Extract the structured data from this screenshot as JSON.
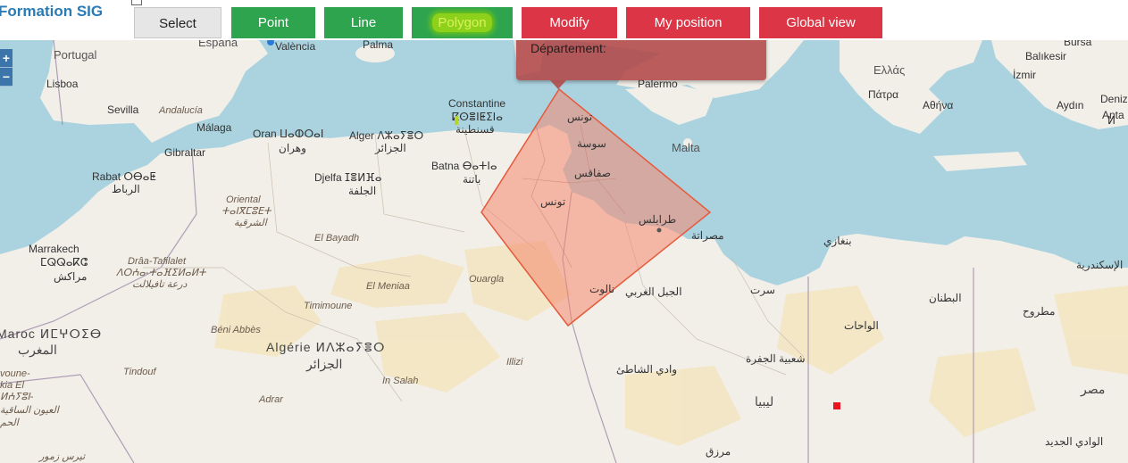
{
  "app": {
    "title": "Formation SIG"
  },
  "toolbar": {
    "buttons": [
      {
        "label": "Select"
      },
      {
        "label": "Point"
      },
      {
        "label": "Line"
      },
      {
        "label": "Polygon"
      },
      {
        "label": "Modify"
      },
      {
        "label": "My position"
      },
      {
        "label": "Global view"
      }
    ],
    "active": "Polygon"
  },
  "zoom": {
    "in": "+",
    "out": "−"
  },
  "popup": {
    "text": "Département:"
  },
  "colors": {
    "sea": "#aad3df",
    "land": "#f2efe9",
    "desert": "#f3e5c0",
    "polygon_fill": "#f5876e",
    "polygon_stroke": "#e55a3c",
    "green": "#2ea44f",
    "red": "#dc3545"
  },
  "map": {
    "labels": {
      "portugal": "Portugal",
      "espana": "España",
      "lisboa": "Lisboa",
      "sevilla": "Sevilla",
      "andalucia": "Andalucía",
      "malaga": "Málaga",
      "gibraltar": "Gibraltar",
      "rabat": "Rabat ⵔⴱⴰⵟ",
      "rabat_ar": "الرباط",
      "marrakech": "Marrakech",
      "marrakech_tf": "ⵎⵕⵕⴰⴽⵛ",
      "marrakech_ar": "مراكش",
      "valencia": "València",
      "palma": "Palma",
      "oran": "Oran ⵡⴰⵀⵔⴰⵏ",
      "oran_ar": "وهران",
      "alger": "Alger ⴷⵣⴰⵢⴻⵔ",
      "alger_ar": "الجزائر",
      "constantine": "Constantine",
      "constantine_tf": "ⵇⵙⴻⵏⵟⵉⵏⴰ",
      "constantine_ar": "قسنطينة",
      "batna": "Batna ⴱⴰⵜⵏⴰ",
      "batna_ar": "باتنة",
      "djelfa": "Djelfa ⵊⴻⵍⴼⴰ",
      "djelfa_ar": "الجلفة",
      "oriental": "Oriental",
      "oriental_tf": "ⵜⴰⵏⴳⵎⵓⴹⵜ",
      "oriental_ar": "الشرقية",
      "el_bayadh": "El Bayadh",
      "draa": "Drâa-Tafilalet",
      "draa_tf": "ⴷⵔⵄⴰ-ⵜⴰⴼⵉⵍⴰⵍⵜ",
      "draa_ar": "درعة تافيلالت",
      "el_meniaa": "El Meniaa",
      "ouargla": "Ouargla",
      "timimoune": "Timimoune",
      "beni_abbes": "Béni Abbès",
      "algerie": "Algérie ⵍⴷⵣⴰⵢⴻⵔ",
      "algerie_ar": "الجزائر",
      "maroc": "Maroc ⵍⵎⵖⵔⵉⴱ",
      "maroc_ar": "المغرب",
      "tindouf": "Tindouf",
      "adrar": "Adrar",
      "in_salah": "In Salah",
      "illizi": "Illizi",
      "tounes": "تونس",
      "tounes2": "تونس",
      "sousse": "سوسة",
      "sfax": "صفاقس",
      "tarablus": "طرابلس",
      "misrata": "مصراتة",
      "palermo": "Palermo",
      "malta": "Malta",
      "ellas": "Ελλάς",
      "patra": "Πάτρα",
      "athina": "Αθήνα",
      "bursa": "Bursa",
      "balikesir": "Balıkesir",
      "izmir": "İzmir",
      "aydin": "Aydın",
      "denizli": "Denizli",
      "antalya": "Anta",
      "benghazi": "بنغازي",
      "iskandariya": "الإسكندرية",
      "surt": "سرت",
      "jabal_gharbi": "الجبل الغربي",
      "nalut": "نالوت",
      "batnan": "البطنان",
      "matruh": "مطروح",
      "wahat": "الواحات",
      "jufra": "شعبية الجفرة",
      "wadi_shati": "وادي الشاطئ",
      "libya": "ليبيا",
      "misr": "مصر",
      "wadi_jadid": "الوادي الجديد",
      "murzuq": "مرزق",
      "western_sahara_1": "voune-",
      "western_sahara_2": "kia El",
      "western_sahara_3": "ⵍⵄⵢⵓⵏ-",
      "western_sahara_4": "العيون الساقية",
      "western_sahara_5": "الحم",
      "tiris": "تيرس زمور",
      "l_tf": "ⵍ"
    }
  }
}
